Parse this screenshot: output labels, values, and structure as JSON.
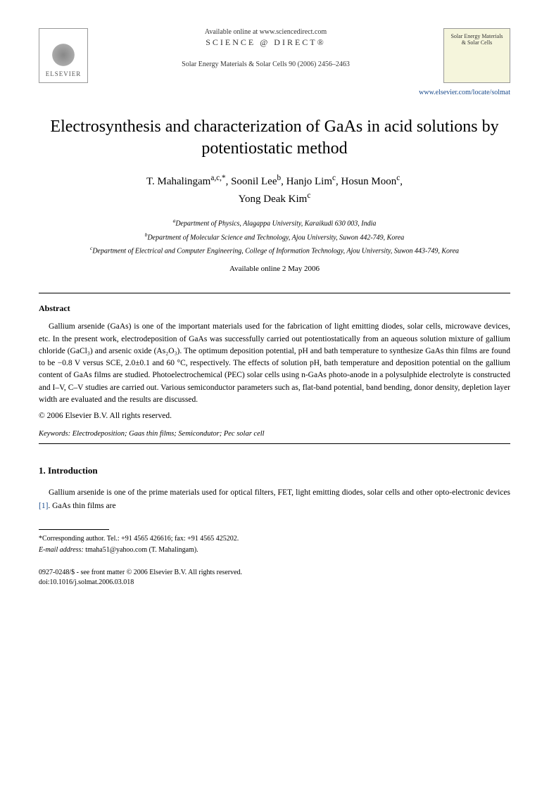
{
  "header": {
    "elsevier_label": "ELSEVIER",
    "available_online": "Available online at www.sciencedirect.com",
    "science_direct": "SCIENCE @ DIRECT®",
    "journal_ref": "Solar Energy Materials & Solar Cells 90 (2006) 2456–2463",
    "journal_box_line1": "Solar Energy Materials",
    "journal_box_line2": "& Solar Cells",
    "journal_link": "www.elsevier.com/locate/solmat"
  },
  "title": "Electrosynthesis and characterization of GaAs in acid solutions by potentiostatic method",
  "authors": {
    "a1_name": "T. Mahalingam",
    "a1_sup": "a,c,*",
    "a2_name": "Soonil Lee",
    "a2_sup": "b",
    "a3_name": "Hanjo Lim",
    "a3_sup": "c",
    "a4_name": "Hosun Moon",
    "a4_sup": "c",
    "a5_name": "Yong Deak Kim",
    "a5_sup": "c"
  },
  "affiliations": {
    "a_sup": "a",
    "a": "Department of Physics, Alagappa University, Karaikudi 630 003, India",
    "b_sup": "b",
    "b": "Department of Molecular Science and Technology, Ajou University, Suwon 442-749, Korea",
    "c_sup": "c",
    "c": "Department of Electrical and Computer Engineering, College of Information Technology, Ajou University, Suwon 443-749, Korea"
  },
  "available_date": "Available online 2 May 2006",
  "abstract": {
    "heading": "Abstract",
    "text": "Gallium arsenide (GaAs) is one of the important materials used for the fabrication of light emitting diodes, solar cells, microwave devices, etc. In the present work, electrodeposition of GaAs was successfully carried out potentiostatically from an aqueous solution mixture of gallium chloride (GaCl₃) and arsenic oxide (As₂O₃). The optimum deposition potential, pH and bath temperature to synthesize GaAs thin films are found to be −0.8 V versus SCE, 2.0±0.1 and 60 °C, respectively. The effects of solution pH, bath temperature and deposition potential on the gallium content of GaAs films are studied. Photoelectrochemical (PEC) solar cells using n-GaAs photo-anode in a polysulphide electrolyte is constructed and I–V, C–V studies are carried out. Various semiconductor parameters such as, flat-band potential, band bending, donor density, depletion layer width are evaluated and the results are discussed.",
    "copyright": "© 2006 Elsevier B.V. All rights reserved."
  },
  "keywords": {
    "label": "Keywords:",
    "text": " Electrodeposition; Gaas thin films; Semicondutor; Pec solar cell"
  },
  "introduction": {
    "heading": "1. Introduction",
    "text_part1": "Gallium arsenide is one of the prime materials used for optical filters, FET, light emitting diodes, solar cells and other opto-electronic devices ",
    "ref": "[1]",
    "text_part2": ". GaAs thin films are"
  },
  "footnote": {
    "corresponding": "*Corresponding author. Tel.: +91 4565 426616; fax: +91 4565 425202.",
    "email_label": "E-mail address:",
    "email": " tmaha51@yahoo.com (T. Mahalingam)."
  },
  "footer": {
    "line1": "0927-0248/$ - see front matter © 2006 Elsevier B.V. All rights reserved.",
    "line2": "doi:10.1016/j.solmat.2006.03.018"
  },
  "colors": {
    "link_color": "#1a4b8c",
    "text_color": "#000000",
    "background": "#ffffff"
  },
  "typography": {
    "title_fontsize": 24,
    "body_fontsize": 11.5,
    "affiliation_fontsize": 10,
    "footnote_fontsize": 10
  }
}
